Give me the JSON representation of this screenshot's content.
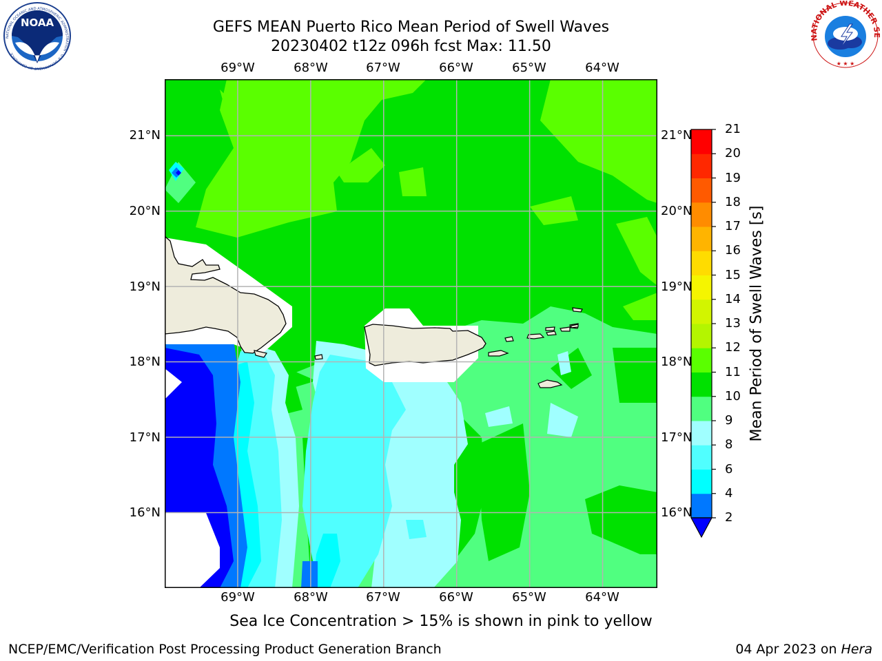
{
  "header": {
    "title_line1": "GEFS MEAN Puerto Rico Mean Period of Swell Waves",
    "title_line2": "20230402 t12z 096h fcst   Max: 11.50"
  },
  "logos": {
    "noaa_text": "NOAA",
    "noaa_ring": "NATIONAL OCEANIC AND ATMOSPHERIC ADMINISTRATION · U.S. DEPARTMENT OF COMMERCE",
    "nws_ring": "NATIONAL WEATHER SERVICE"
  },
  "map": {
    "lon_ticks": [
      "69°W",
      "68°W",
      "67°W",
      "66°W",
      "65°W",
      "64°W"
    ],
    "lat_ticks": [
      "21°N",
      "20°N",
      "19°N",
      "18°N",
      "17°N",
      "16°N"
    ],
    "lon_values": [
      -69,
      -68,
      -67,
      -66,
      -65,
      -64
    ],
    "lat_values": [
      21,
      20,
      19,
      18,
      17,
      16
    ],
    "lon_range": [
      -70.0,
      -63.25
    ],
    "lat_range": [
      15.0,
      21.75
    ],
    "grid": true,
    "land_color": "#eeecdc",
    "ocean_base_color": "#00e100"
  },
  "colorbar": {
    "title": "Mean Period of Swell Waves [s]",
    "labels": [
      "2",
      "4",
      "6",
      "8",
      "9",
      "10",
      "11",
      "12",
      "13",
      "14",
      "15",
      "16",
      "17",
      "18",
      "19",
      "20",
      "21"
    ],
    "colors": [
      "#0000ff",
      "#0078ff",
      "#00ffff",
      "#50ffff",
      "#a0ffff",
      "#50ff80",
      "#00e100",
      "#5aff00",
      "#b4f500",
      "#d2f500",
      "#f5f500",
      "#ffdc00",
      "#ffb400",
      "#ff8c00",
      "#ff5a00",
      "#ff2800",
      "#ff0000"
    ],
    "under_color": "#0000ff"
  },
  "note": "Sea Ice Concentration > 15% is shown in pink to yellow",
  "footer": {
    "left": "NCEP/EMC/Verification Post Processing Product Generation Branch",
    "date": "04 Apr 2023 on ",
    "machine": "Hera"
  }
}
